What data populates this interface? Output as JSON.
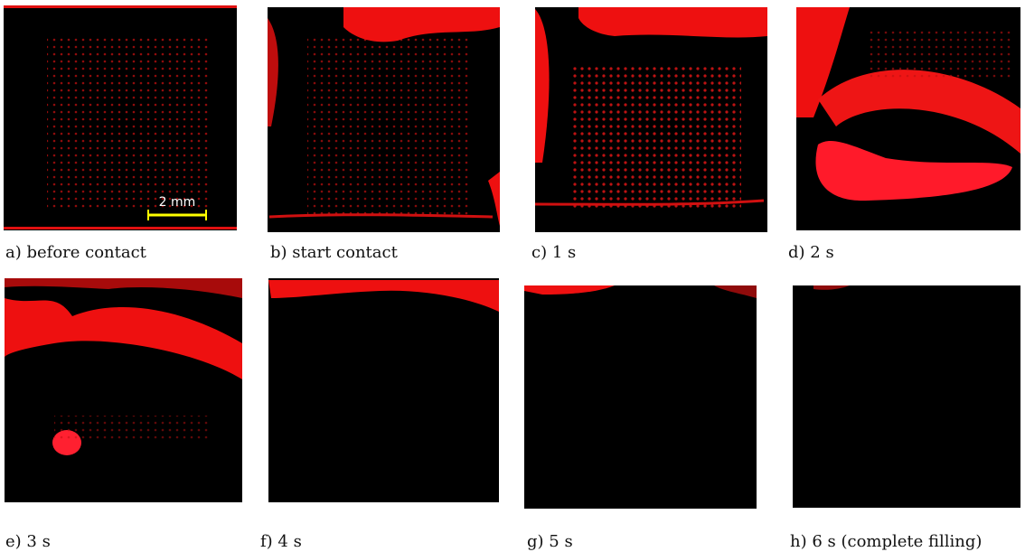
{
  "panels": [
    {
      "caption": "a) before contact"
    },
    {
      "caption": "b) start contact"
    },
    {
      "caption": "c) 1 s"
    },
    {
      "caption": "d) 2 s"
    },
    {
      "caption": "e) 3 s"
    },
    {
      "caption": "f) 4 s"
    },
    {
      "caption": "g) 5 s"
    },
    {
      "caption": "h) 6 s (complete filling)"
    }
  ],
  "scale_bar": "2 mm"
}
